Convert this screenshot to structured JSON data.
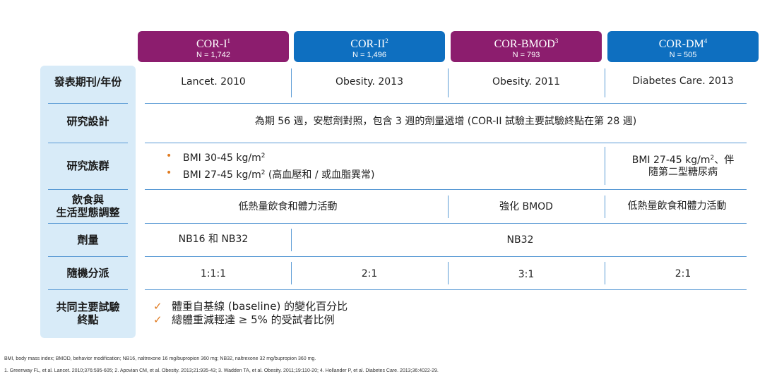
{
  "columns": [
    {
      "name": "COR-I",
      "sup": "1",
      "n": "N = 1,742"
    },
    {
      "name": "COR-II",
      "sup": "2",
      "n": "N  = 1,496"
    },
    {
      "name": "COR-BMOD",
      "sup": "3",
      "n": "N = 793"
    },
    {
      "name": "COR-DM",
      "sup": "4",
      "n": "N = 505"
    }
  ],
  "rows": {
    "journal": {
      "label": "發表期刊/年份",
      "values": [
        "Lancet. 2010",
        "Obesity. 2013",
        "Obesity. 2011",
        "Diabetes Care. 2013"
      ]
    },
    "design": {
      "label": "研究設計",
      "value": "為期 56  週，安慰劑對照，包含 3 週的劑量遞增 (COR-II 試驗主要試驗終點在第 28 週)"
    },
    "population": {
      "label": "研究族群",
      "bullet1_pre": "BMI 30-45 kg/m",
      "bullet1_sup": "2",
      "bullet2_pre": "BMI 27-45 kg/m",
      "bullet2_sup": "2",
      "bullet2_post": " (高血壓和 / 或血脂異常)",
      "dm_line1_pre": "BMI 27-45 kg/m",
      "dm_line1_sup": "2",
      "dm_line1_post": "、伴",
      "dm_line2": "隨第二型糖尿病"
    },
    "lifestyle": {
      "label_line1": "飲食與",
      "label_line2": "生活型態調整",
      "values": [
        "低熱量飲食和體力活動",
        "強化 BMOD",
        "低熱量飲食和體力活動"
      ]
    },
    "dose": {
      "label": "劑量",
      "values": [
        "NB16 和 NB32",
        "NB32"
      ]
    },
    "randomization": {
      "label": "隨機分派",
      "values": [
        "1:1:1",
        "2:1",
        "3:1",
        "2:1"
      ]
    },
    "endpoints": {
      "label_line1": "共同主要試驗",
      "label_line2": "終點",
      "items": [
        "體重自基線 (baseline) 的變化百分比",
        "總體重減輕達 ≥ 5% 的受試者比例"
      ]
    }
  },
  "footnotes": {
    "abbrev": "BMI, body mass index; BMOD, behavior modification; NB16, naltrexone 16 mg/bupropion 360 mg; NB32, naltrexone 32 mg/bupropion 360 mg.",
    "refs": "1. Greenway FL, et al. Lancet. 2010;376:595-605; 2. Apovian CM, et al. Obesity. 2013;21:935-43; 3. Wadden TA, et al. Obesity. 2011;19:110-20; 4. Hollander P, et al. Diabetes Care. 2013;36:4022-29."
  },
  "colors": {
    "purple": "#8c1d6e",
    "blue": "#0e6fc0",
    "label_bg": "#d8ebf8",
    "rule": "#5b9bd5",
    "bullet": "#e07b20"
  }
}
